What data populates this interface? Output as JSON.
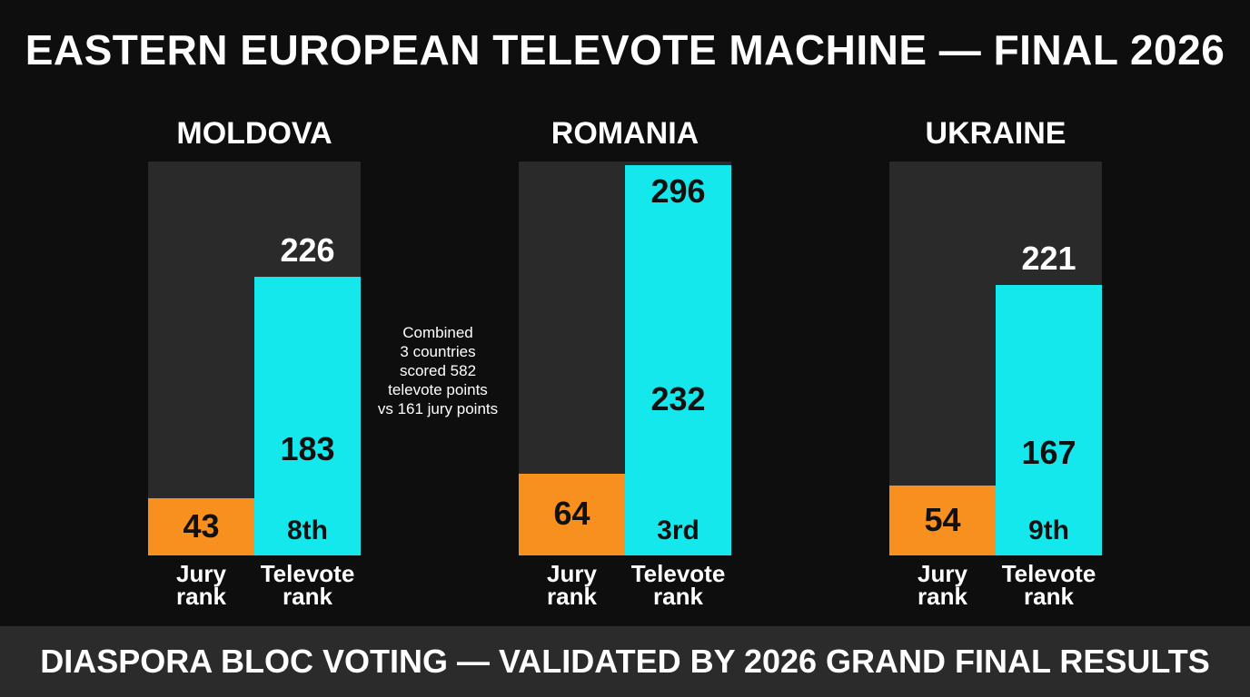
{
  "title": "EASTERN EUROPEAN TELEVOTE MACHINE — FINAL 2026",
  "note_lines": [
    "Combined",
    "3 countries",
    "scored 582",
    "televote points",
    "vs 161 jury points"
  ],
  "banner": "DIASPORA BLOC VOTING — VALIDATED BY 2026 GRAND FINAL RESULTS",
  "colors": {
    "jury": "#f7901e",
    "televote": "#14e8ec",
    "panel": "#2a2a2a",
    "background": "#0e0e0e"
  },
  "chart_data": {
    "type": "bar",
    "scale_max": 296,
    "categories": [
      "Jury\nrank",
      "Televote\nrank"
    ],
    "countries": [
      {
        "name": "MOLDOVA",
        "jury_value": 43,
        "televote_label": "226",
        "televote_mid": "183",
        "televote_rank": "8th"
      },
      {
        "name": "ROMANIA",
        "jury_value": 64,
        "televote_label": "296",
        "televote_mid": "232",
        "televote_rank": "3rd"
      },
      {
        "name": "UKRAINE",
        "jury_value": 54,
        "televote_label": "221",
        "televote_mid": "167",
        "televote_rank": "9th"
      }
    ],
    "jury_bar_fraction": [
      0.146,
      0.208,
      0.178
    ],
    "televote_bar_fraction": [
      0.707,
      0.99,
      0.686
    ]
  },
  "axis_labels": {
    "jury": "Jury rank",
    "televote": "Televote rank"
  }
}
